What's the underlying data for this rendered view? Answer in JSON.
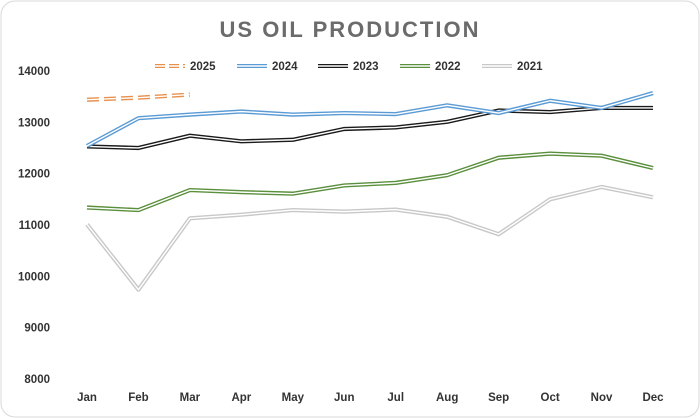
{
  "chart_data": {
    "type": "line",
    "title": "US OIL PRODUCTION",
    "categories": [
      "Jan",
      "Feb",
      "Mar",
      "Apr",
      "May",
      "Jun",
      "Jul",
      "Aug",
      "Sep",
      "Oct",
      "Nov",
      "Dec"
    ],
    "ylim": [
      8000,
      14000
    ],
    "yticks": [
      8000,
      9000,
      10000,
      11000,
      12000,
      13000,
      14000
    ],
    "grid": false,
    "legend": "top",
    "series": [
      {
        "name": "2025",
        "color": "#e8914f",
        "dashed": true,
        "values": [
          13460,
          13500,
          13560,
          null,
          null,
          null,
          null,
          null,
          null,
          null,
          null,
          null
        ]
      },
      {
        "name": "2024",
        "color": "#5b9bd5",
        "values": [
          12560,
          13100,
          13170,
          13230,
          13170,
          13200,
          13180,
          13350,
          13200,
          13440,
          13300,
          13590
        ]
      },
      {
        "name": "2023",
        "color": "#1a1a1a",
        "values": [
          12550,
          12520,
          12760,
          12650,
          12680,
          12890,
          12920,
          13030,
          13250,
          13220,
          13300,
          13300
        ]
      },
      {
        "name": "2022",
        "color": "#5a8f3c",
        "values": [
          11360,
          11310,
          11700,
          11660,
          11630,
          11790,
          11840,
          11990,
          12330,
          12410,
          12370,
          12130
        ]
      },
      {
        "name": "2021",
        "color": "#c8c8c8",
        "values": [
          11030,
          9760,
          11150,
          11220,
          11310,
          11280,
          11320,
          11180,
          10840,
          11520,
          11760,
          11560
        ]
      }
    ]
  }
}
